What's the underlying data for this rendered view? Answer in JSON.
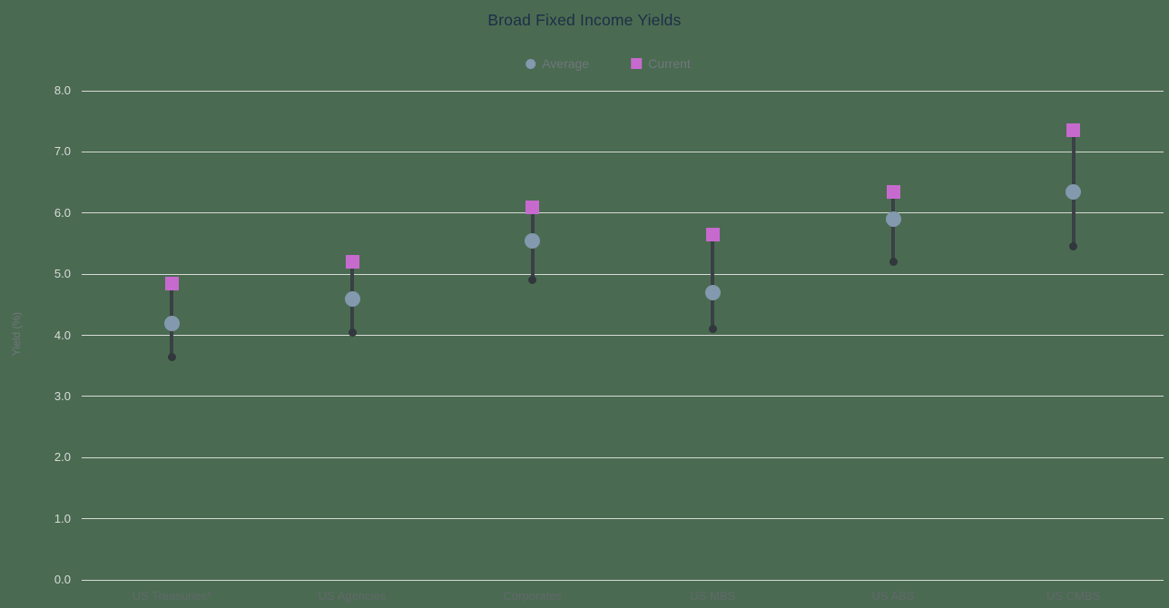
{
  "title": "Broad Fixed Income Yields",
  "legend": {
    "items": [
      {
        "label": "Average",
        "marker": "circle",
        "color": "#8399ae"
      },
      {
        "label": "Current",
        "marker": "square",
        "color": "#c76ace"
      }
    ]
  },
  "chart_data": {
    "type": "scatter",
    "subtype": "dumbbell-range",
    "title": "Broad Fixed Income Yields",
    "categories": [
      "US Treasuries*",
      "US Agencies",
      "Corporates",
      "US MBS",
      "US ABS",
      "US CMBS"
    ],
    "series": [
      {
        "name": "Current",
        "marker": "square",
        "color": "#c76ace",
        "in_legend": true,
        "values": [
          4.85,
          5.2,
          6.1,
          5.65,
          6.35,
          7.35
        ]
      },
      {
        "name": "Average",
        "marker": "circle",
        "color": "#8399ae",
        "in_legend": true,
        "values": [
          4.2,
          4.6,
          5.55,
          4.7,
          5.9,
          6.35
        ]
      },
      {
        "name": "Range Low",
        "marker": "dot",
        "color": "#31373c",
        "in_legend": false,
        "values": [
          3.65,
          4.05,
          4.9,
          4.1,
          5.2,
          5.45
        ]
      }
    ],
    "connector_color": "#3a4046",
    "xlabel": "",
    "ylabel": "Yield (%)",
    "ylim": [
      0,
      8
    ],
    "ytick_step": 1.0,
    "ytick_labels": [
      "0.0",
      "1.0",
      "2.0",
      "3.0",
      "4.0",
      "5.0",
      "6.0",
      "7.0",
      "8.0"
    ],
    "grid": true,
    "legend_position": "top-center",
    "background_color": "#4a6b51",
    "gridline_color": "#d7d9d7",
    "title_color": "#1d2e49"
  }
}
